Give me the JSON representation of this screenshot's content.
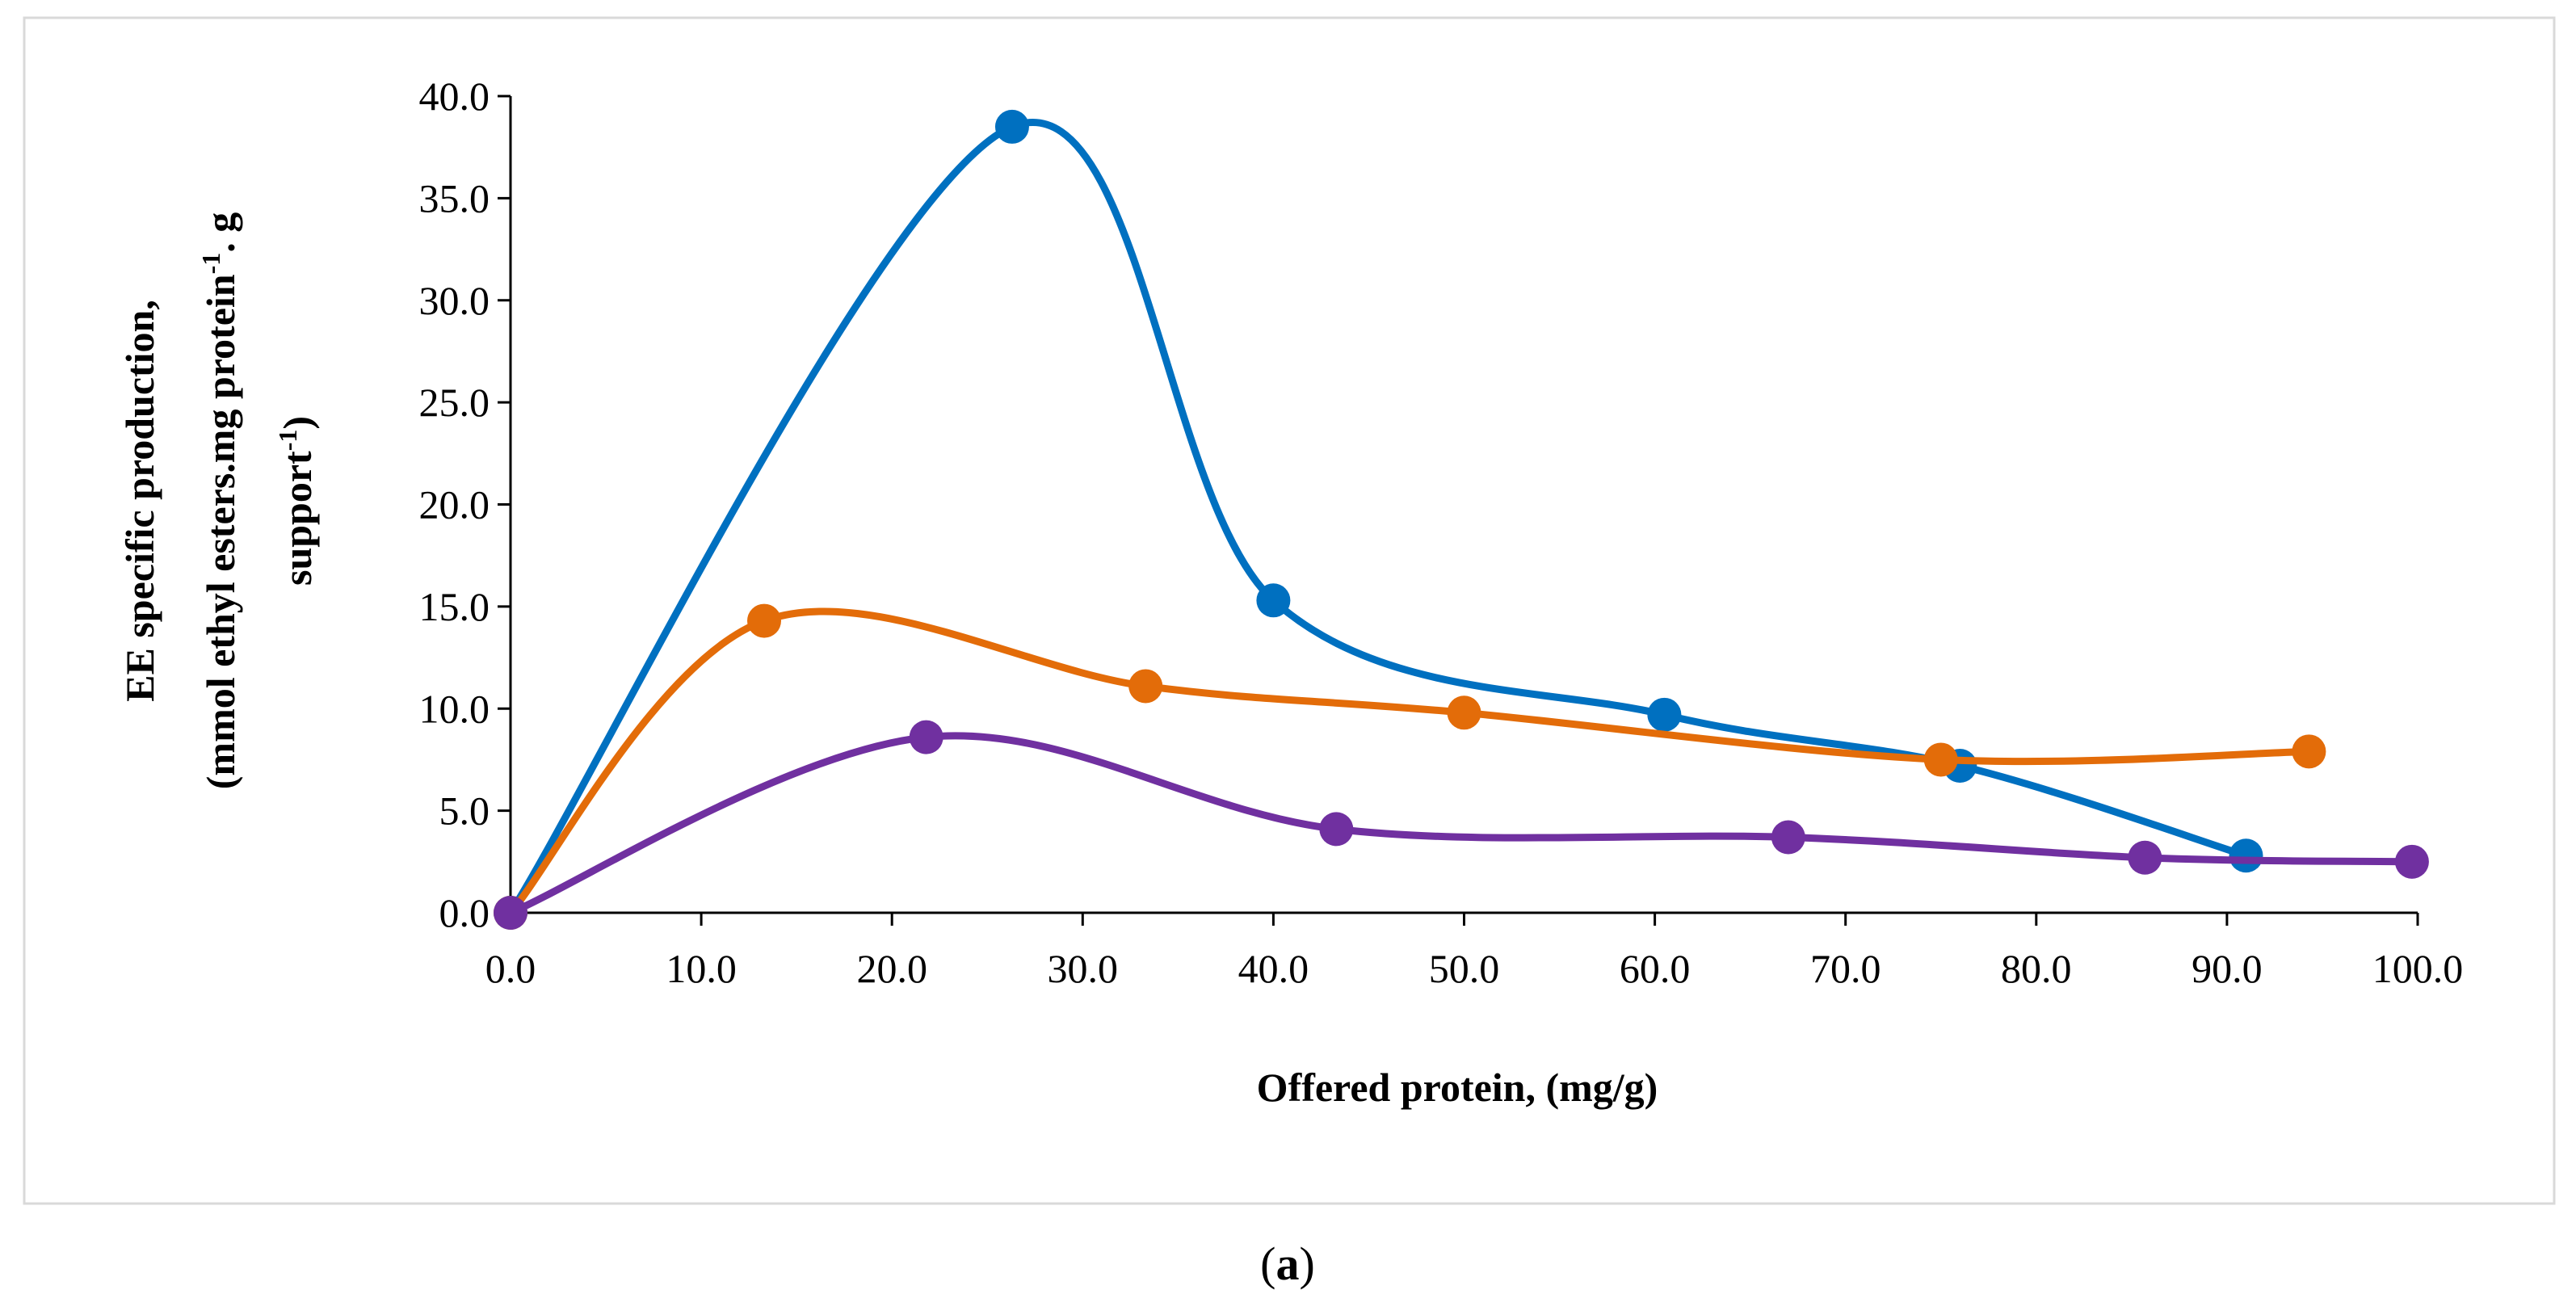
{
  "chart_data": {
    "type": "line",
    "smooth": true,
    "markers": "circle",
    "title": "",
    "xlabel": "Offered protein, (mg/g)",
    "ylabel": {
      "line1": "EE specific production,",
      "line2": "(mmol ethyl esters.mg protein",
      "line2_sup": "-1",
      "line2_tail": ". g",
      "line3": "support",
      "line3_sup": "-1",
      "line3_tail": ")"
    },
    "xlim": [
      0,
      100
    ],
    "ylim": [
      0,
      40
    ],
    "xticks": [
      "0.0",
      "10.0",
      "20.0",
      "30.0",
      "40.0",
      "50.0",
      "60.0",
      "70.0",
      "80.0",
      "90.0",
      "100.0"
    ],
    "yticks": [
      "0.0",
      "5.0",
      "10.0",
      "15.0",
      "20.0",
      "25.0",
      "30.0",
      "35.0",
      "40.0"
    ],
    "xtick_values": [
      0,
      10,
      20,
      30,
      40,
      50,
      60,
      70,
      80,
      90,
      100
    ],
    "ytick_values": [
      0,
      5,
      10,
      15,
      20,
      25,
      30,
      35,
      40
    ],
    "grid": false,
    "legend": "none",
    "series": [
      {
        "name": "blue",
        "color": "#0070C0",
        "x": [
          0,
          26.3,
          40.0,
          60.5,
          76.0,
          91.0
        ],
        "y": [
          0,
          38.5,
          15.3,
          9.7,
          7.2,
          2.8
        ]
      },
      {
        "name": "orange",
        "color": "#E36C09",
        "x": [
          0,
          13.3,
          33.3,
          50.0,
          75.0,
          94.3
        ],
        "y": [
          0,
          14.3,
          11.1,
          9.8,
          7.5,
          7.9
        ]
      },
      {
        "name": "purple",
        "color": "#7030A0",
        "x": [
          0,
          21.8,
          43.3,
          67.0,
          85.7,
          99.7
        ],
        "y": [
          0,
          8.6,
          4.1,
          3.7,
          2.7,
          2.5
        ]
      }
    ],
    "panel_label": {
      "open": "(",
      "letter": "a",
      "close": ")"
    }
  }
}
